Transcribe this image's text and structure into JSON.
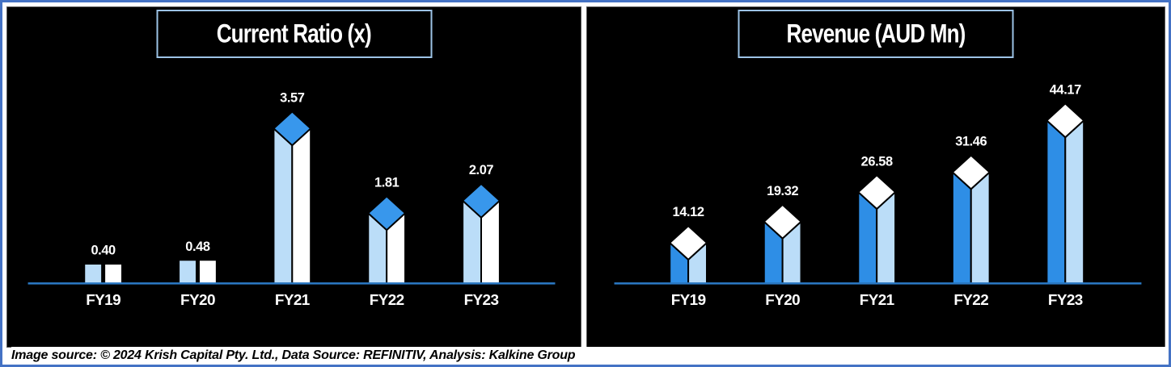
{
  "frame": {
    "outer_border_color": "#4472C4",
    "panel_background": "#000000",
    "title_border_color": "#9DC3E6"
  },
  "chart_data": [
    {
      "type": "bar",
      "title": "Current Ratio (x)",
      "categories": [
        "FY19",
        "FY20",
        "FY21",
        "FY22",
        "FY23"
      ],
      "values": [
        0.4,
        0.48,
        3.57,
        1.81,
        2.07
      ],
      "labels": [
        "0.40",
        "0.48",
        "3.57",
        "1.81",
        "2.07"
      ],
      "ylim": [
        0,
        3.57
      ],
      "grid": false,
      "legend": "none",
      "style": {
        "face_left": "#BBDDF8",
        "face_right": "#FFFFFF",
        "top": "#3897EC",
        "axis": "#2B7AC6",
        "label_color": "#FFFFFF"
      }
    },
    {
      "type": "bar",
      "title": "Revenue (AUD Mn)",
      "categories": [
        "FY19",
        "FY20",
        "FY21",
        "FY22",
        "FY23"
      ],
      "values": [
        14.12,
        19.32,
        26.58,
        31.46,
        44.17
      ],
      "labels": [
        "14.12",
        "19.32",
        "26.58",
        "31.46",
        "44.17"
      ],
      "ylim": [
        0,
        44.17
      ],
      "grid": false,
      "legend": "none",
      "style": {
        "face_left": "#2E8EE6",
        "face_right": "#BBDDF8",
        "top": "#FFFFFF",
        "axis": "#2B7AC6",
        "label_color": "#FFFFFF"
      }
    }
  ],
  "footer": {
    "text": "Image source: © 2024 Krish Capital Pty. Ltd., Data Source: REFINITIV, Analysis: Kalkine Group"
  }
}
